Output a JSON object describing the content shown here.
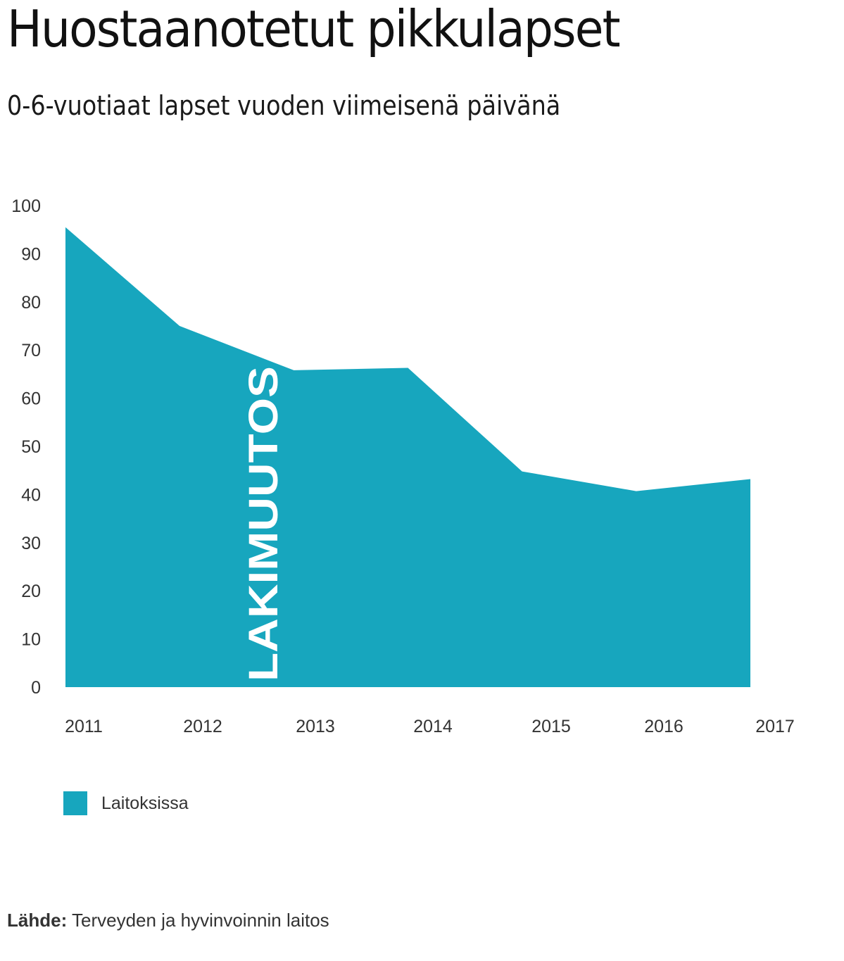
{
  "title": "Huostaanotetut pikkulapset",
  "subtitle": "0-6-vuotiaat lapset vuoden viimeisenä päivänä",
  "colors": {
    "area": "#17a6be",
    "overlay_text": "#ffffff"
  },
  "chart_data": {
    "type": "area",
    "title": "Huostaanotetut pikkulapset",
    "subtitle": "0-6-vuotiaat lapset vuoden viimeisenä päivänä",
    "x": [
      "2011",
      "2012",
      "2013",
      "2014",
      "2015",
      "2016",
      "2017"
    ],
    "series": [
      {
        "name": "Laitoksissa",
        "values": [
          95.5,
          75,
          65.8,
          66.3,
          44.8,
          40.7,
          43.2
        ]
      }
    ],
    "ylim": [
      0,
      100
    ],
    "yticks": [
      "0",
      "10",
      "20",
      "30",
      "40",
      "50",
      "60",
      "70",
      "80",
      "90",
      "100"
    ],
    "grid": false,
    "legend_position": "bottom-left",
    "annotations": [
      {
        "text": "LAKIMUUTOS",
        "orientation": "vertical",
        "near_x": "2012–2013"
      }
    ]
  },
  "legend": {
    "items": [
      {
        "label": "Laitoksissa"
      }
    ]
  },
  "source": {
    "label": "Lähde:",
    "text": "Terveyden ja hyvinvoinnin laitos"
  }
}
